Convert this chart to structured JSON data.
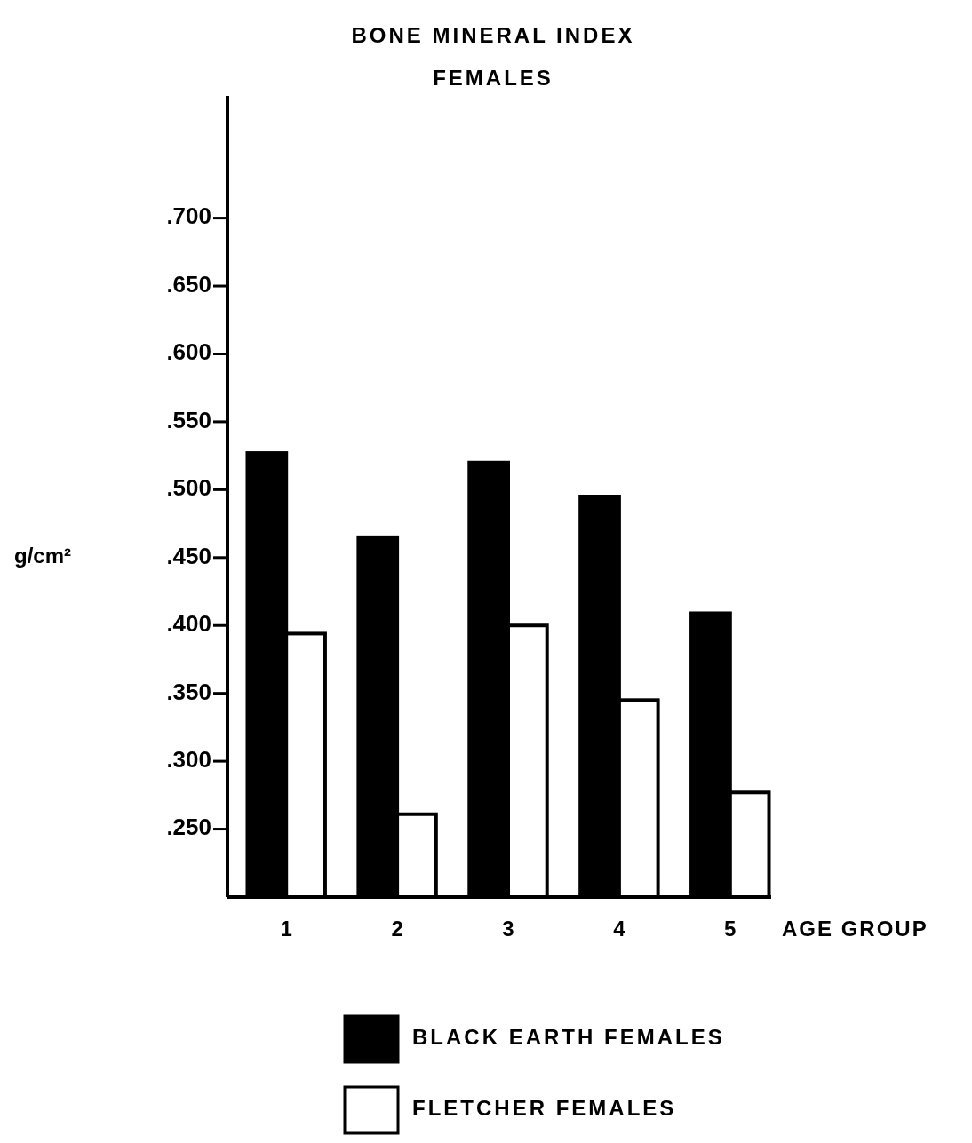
{
  "chart_data": {
    "type": "bar",
    "title": "BONE MINERAL INDEX",
    "subtitle": "FEMALES",
    "xlabel": "AGE GROUP",
    "ylabel": "g/cm²",
    "categories": [
      "1",
      "2",
      "3",
      "4",
      "5"
    ],
    "series": [
      {
        "name": "BLACK EARTH FEMALES",
        "color": "#000000",
        "values": [
          0.527,
          0.465,
          0.52,
          0.495,
          0.409
        ]
      },
      {
        "name": "FLETCHER FEMALES",
        "color": "#ffffff",
        "values": [
          0.394,
          0.261,
          0.4,
          0.345,
          0.277
        ]
      }
    ],
    "ylim": [
      0.2,
      0.79
    ],
    "yticks": [
      {
        "value": 0.25,
        "label": ".250"
      },
      {
        "value": 0.3,
        "label": ".300"
      },
      {
        "value": 0.35,
        "label": ".350"
      },
      {
        "value": 0.4,
        "label": ".400"
      },
      {
        "value": 0.45,
        "label": ".450"
      },
      {
        "value": 0.5,
        "label": ".500"
      },
      {
        "value": 0.55,
        "label": ".550"
      },
      {
        "value": 0.6,
        "label": ".600"
      },
      {
        "value": 0.65,
        "label": ".650"
      },
      {
        "value": 0.7,
        "label": ".700"
      }
    ],
    "grid": false,
    "legend": "bottom"
  }
}
